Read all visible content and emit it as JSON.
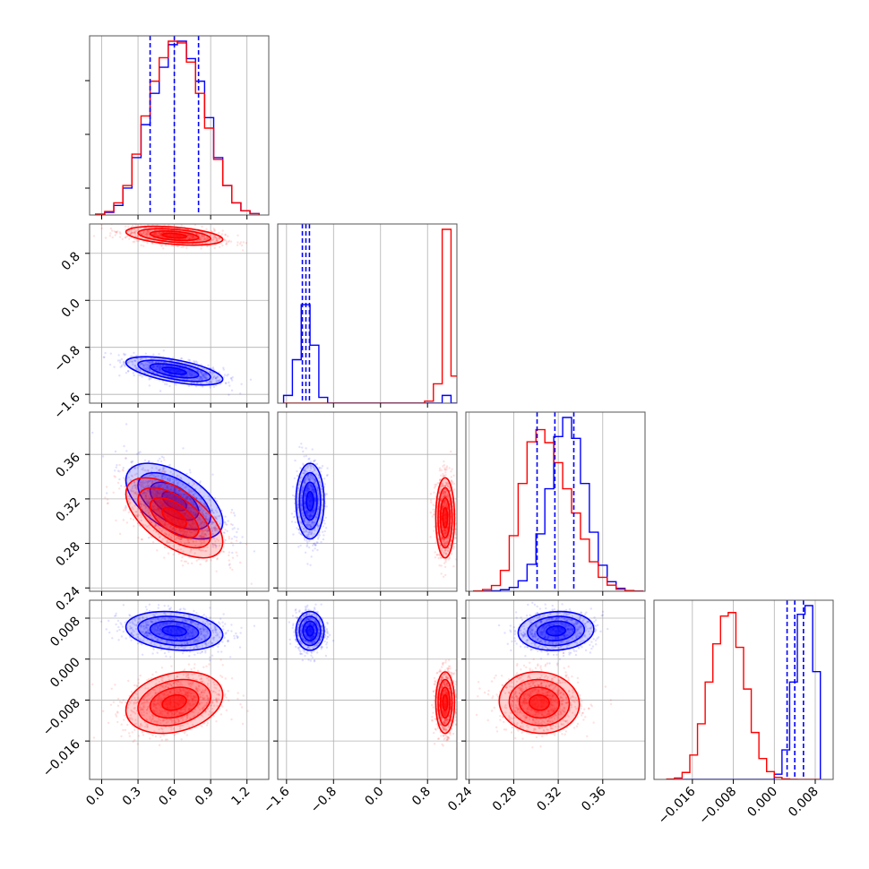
{
  "chart_data": {
    "type": "scatter",
    "subtype": "corner-plot",
    "title": "",
    "grid": true,
    "legend": "none",
    "colors": {
      "series_a": "#0000ff",
      "series_b": "#ff0000",
      "grid": "#b0b0b0"
    },
    "params": [
      {
        "range": [
          -0.1,
          1.38
        ],
        "ticks": [
          0.0,
          0.3,
          0.6,
          0.9,
          1.2
        ],
        "tick_labels": [
          "0.0",
          "0.3",
          "0.6",
          "0.9",
          "1.2"
        ]
      },
      {
        "range": [
          -1.75,
          1.3
        ],
        "ticks": [
          -1.6,
          -0.8,
          0.0,
          0.8
        ],
        "tick_labels": [
          "−1.6",
          "−0.8",
          "0.0",
          "0.8"
        ]
      },
      {
        "range": [
          0.237,
          0.398
        ],
        "ticks": [
          0.24,
          0.28,
          0.32,
          0.36
        ],
        "tick_labels": [
          "0.24",
          "0.28",
          "0.32",
          "0.36"
        ]
      },
      {
        "range": [
          -0.0235,
          0.0115
        ],
        "ticks": [
          -0.016,
          -0.008,
          0.0,
          0.008
        ],
        "tick_labels": [
          "−0.016",
          "−0.008",
          "0.000",
          "0.008"
        ]
      }
    ],
    "series": [
      {
        "color": "#0000ff",
        "mean": [
          0.6,
          -1.2,
          0.318,
          0.0055
        ],
        "std": [
          0.2,
          0.12,
          0.017,
          0.0019
        ],
        "corr": {
          "0-1": -0.6,
          "0-2": -0.55,
          "0-3": -0.2,
          "1-2": 0.0,
          "1-3": 0.0,
          "2-3": 0.1
        },
        "quantiles": [
          [
            0.4,
            0.6,
            0.8
          ],
          [
            -1.33,
            -1.27,
            -1.21
          ],
          [
            0.301,
            0.317,
            0.334
          ],
          [
            0.0025,
            0.004,
            0.0057
          ]
        ]
      },
      {
        "color": "#ff0000",
        "mean": [
          0.6,
          1.1,
          0.303,
          -0.0085
        ],
        "std": [
          0.2,
          0.08,
          0.018,
          0.003
        ],
        "corr": {
          "0-1": -0.4,
          "0-2": -0.6,
          "0-3": 0.25,
          "1-2": 0.0,
          "1-3": 0.0,
          "2-3": -0.05
        },
        "quantiles": null
      }
    ],
    "histograms": {
      "0": {
        "bins": [
          -0.05,
          0.025,
          0.1,
          0.175,
          0.25,
          0.325,
          0.4,
          0.475,
          0.55,
          0.625,
          0.7,
          0.775,
          0.85,
          0.925,
          1.0,
          1.075,
          1.15,
          1.225,
          1.3
        ],
        "blue": [
          5,
          15,
          55,
          155,
          330,
          520,
          700,
          850,
          980,
          1000,
          900,
          770,
          560,
          330,
          170,
          70,
          25,
          8
        ],
        "red": [
          5,
          20,
          70,
          170,
          350,
          570,
          770,
          905,
          1000,
          990,
          880,
          700,
          500,
          320,
          170,
          70,
          25,
          8
        ]
      },
      "1": {
        "bins": [
          -1.65,
          -1.5,
          -1.35,
          -1.2,
          -1.05,
          -0.9,
          -0.75,
          -0.6,
          -0.45,
          -0.3,
          -0.15,
          0.0,
          0.15,
          0.3,
          0.45,
          0.6,
          0.75,
          0.9,
          1.05,
          1.2,
          1.35
        ],
        "blue": [
          8,
          45,
          102,
          60,
          6,
          0,
          0,
          0,
          0,
          0,
          0,
          0,
          0,
          0,
          0,
          0,
          0,
          0,
          8,
          0
        ],
        "red": [
          0,
          0,
          0,
          0,
          0,
          0,
          0,
          0,
          0,
          0,
          0,
          0,
          0,
          0,
          0,
          0,
          2,
          20,
          180,
          28
        ]
      },
      "2": {
        "bins": [
          0.244,
          0.252,
          0.26,
          0.268,
          0.276,
          0.284,
          0.292,
          0.3,
          0.308,
          0.316,
          0.324,
          0.332,
          0.34,
          0.348,
          0.356,
          0.364,
          0.372,
          0.38,
          0.388,
          0.396
        ],
        "blue": [
          0,
          1,
          3,
          9,
          22,
          60,
          155,
          330,
          590,
          890,
          1000,
          880,
          620,
          340,
          150,
          55,
          17,
          4,
          1
        ],
        "red": [
          2,
          10,
          33,
          120,
          320,
          620,
          860,
          930,
          855,
          740,
          590,
          450,
          300,
          170,
          80,
          35,
          12,
          4,
          1
        ]
      },
      "3": {
        "bins": [
          -0.021,
          -0.0195,
          -0.018,
          -0.0165,
          -0.015,
          -0.0135,
          -0.012,
          -0.0105,
          -0.009,
          -0.0075,
          -0.006,
          -0.0045,
          -0.003,
          -0.0015,
          0.0,
          0.0015,
          0.003,
          0.0045,
          0.006,
          0.0075,
          0.009
        ],
        "blue": [
          0,
          0,
          0,
          0,
          0,
          0,
          0,
          0,
          0,
          0,
          0,
          0,
          0,
          0,
          30,
          170,
          560,
          950,
          1000,
          620
        ],
        "red": [
          2,
          8,
          40,
          140,
          320,
          560,
          780,
          940,
          960,
          760,
          520,
          270,
          120,
          45,
          12,
          3,
          1,
          0,
          0,
          0
        ]
      }
    }
  }
}
